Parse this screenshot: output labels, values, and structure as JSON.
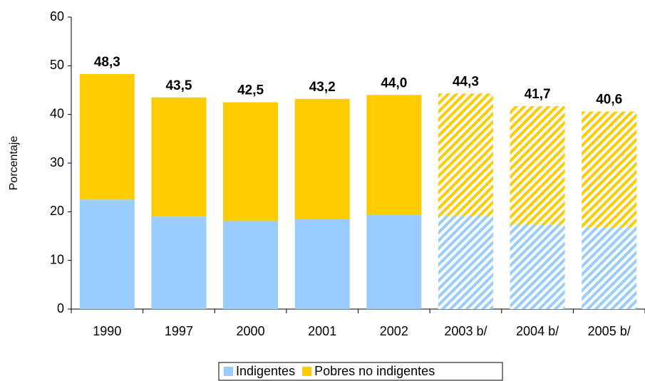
{
  "chart_data": {
    "type": "stacked_bar",
    "y_label": "Porcentaje",
    "categories": [
      "1990",
      "1997",
      "2000",
      "2001",
      "2002",
      "2003 b/",
      "2004 b/",
      "2005 b/"
    ],
    "series": [
      {
        "name": "Indigentes",
        "color": "#99ccff",
        "values": [
          22.5,
          19.0,
          18.1,
          18.5,
          19.4,
          19.2,
          17.4,
          16.8
        ],
        "value_labels": [
          "22,5",
          "19,0",
          "18,1",
          "18,5",
          "19,4",
          "19,2",
          "17,4",
          "16,8"
        ]
      },
      {
        "name": "Pobres no indigentes",
        "color": "#ffcc00",
        "values": [
          25.8,
          24.5,
          24.4,
          24.7,
          24.6,
          25.1,
          24.3,
          23.8
        ]
      }
    ],
    "totals": [
      48.3,
      43.5,
      42.5,
      43.2,
      44.0,
      44.3,
      41.7,
      40.6
    ],
    "total_labels": [
      "48,3",
      "43,5",
      "42,5",
      "43,2",
      "44,0",
      "44,3",
      "41,7",
      "40,6"
    ],
    "hatched": [
      false,
      false,
      false,
      false,
      false,
      true,
      true,
      true
    ],
    "ylim": [
      0,
      60
    ],
    "yticks": [
      0,
      10,
      20,
      30,
      40,
      50,
      60
    ],
    "legend": "bottom"
  }
}
